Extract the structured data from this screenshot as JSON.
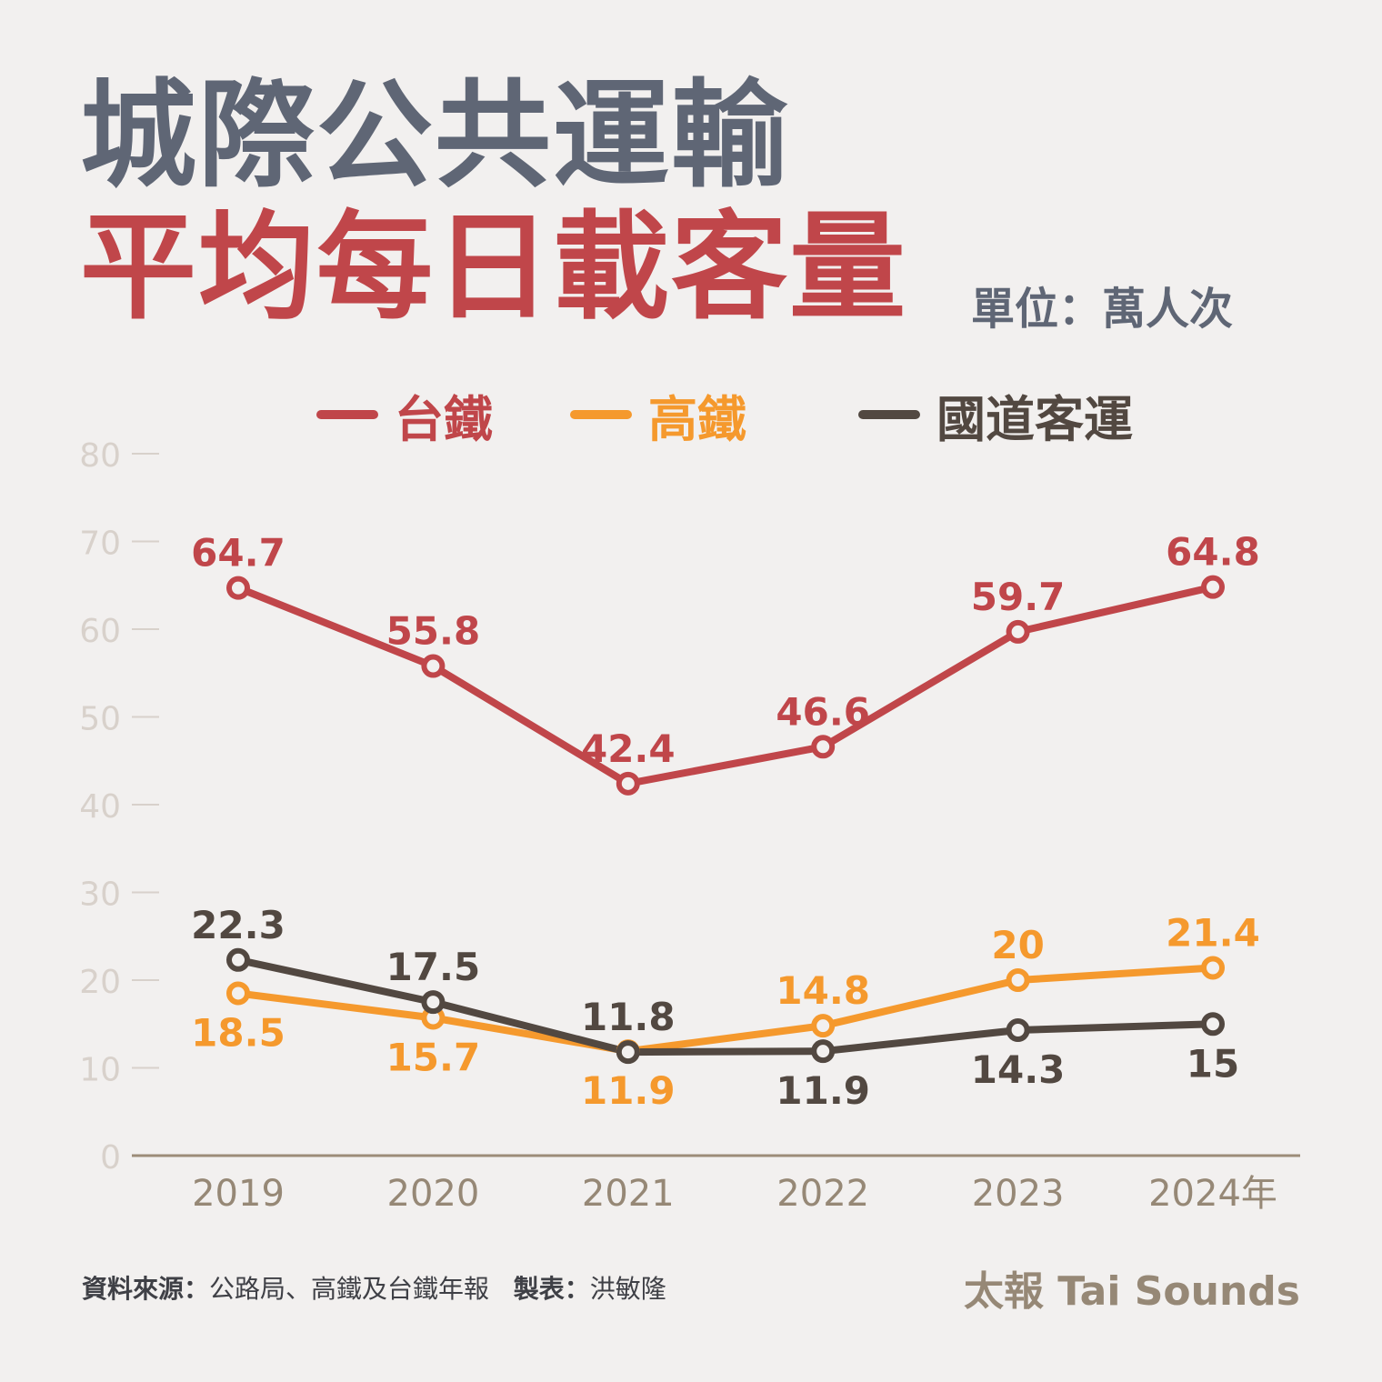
{
  "title_line1": "城際公共運輸",
  "title_line2": "平均每日載客量",
  "unit_label": "單位：萬人次",
  "source_label": "資料來源：",
  "source_text": "公路局、高鐵及台鐵年報",
  "author_label": "製表：",
  "author_text": "洪敏隆",
  "brand": "太報 Tai Sounds",
  "colors": {
    "tra": "#c0464a",
    "thsr": "#f5992d",
    "bus": "#524841",
    "axis_tick": "#d8d1cb",
    "axis_line": "#9c8c78",
    "x_label": "#968876"
  },
  "chart_data": {
    "type": "line",
    "categories": [
      "2019",
      "2020",
      "2021",
      "2022",
      "2023",
      "2024年"
    ],
    "ylim": [
      0,
      80
    ],
    "yticks": [
      "0",
      "10",
      "20",
      "30",
      "40",
      "50",
      "60",
      "70",
      "80"
    ],
    "grid": false,
    "legend_position": "top",
    "series": [
      {
        "name": "台鐵",
        "color": "#c0464a",
        "values": [
          64.7,
          55.8,
          42.4,
          46.6,
          59.7,
          64.8
        ],
        "labels": [
          "64.7",
          "55.8",
          "42.4",
          "46.6",
          "59.7",
          "64.8"
        ]
      },
      {
        "name": "高鐵",
        "color": "#f5992d",
        "values": [
          18.5,
          15.7,
          11.9,
          14.8,
          20,
          21.4
        ],
        "labels": [
          "18.5",
          "15.7",
          "11.9",
          "14.8",
          "20",
          "21.4"
        ]
      },
      {
        "name": "國道客運",
        "color": "#524841",
        "values": [
          22.3,
          17.5,
          11.8,
          11.9,
          14.3,
          15
        ],
        "labels": [
          "22.3",
          "17.5",
          "11.8",
          "11.9",
          "14.3",
          "15"
        ]
      }
    ]
  }
}
